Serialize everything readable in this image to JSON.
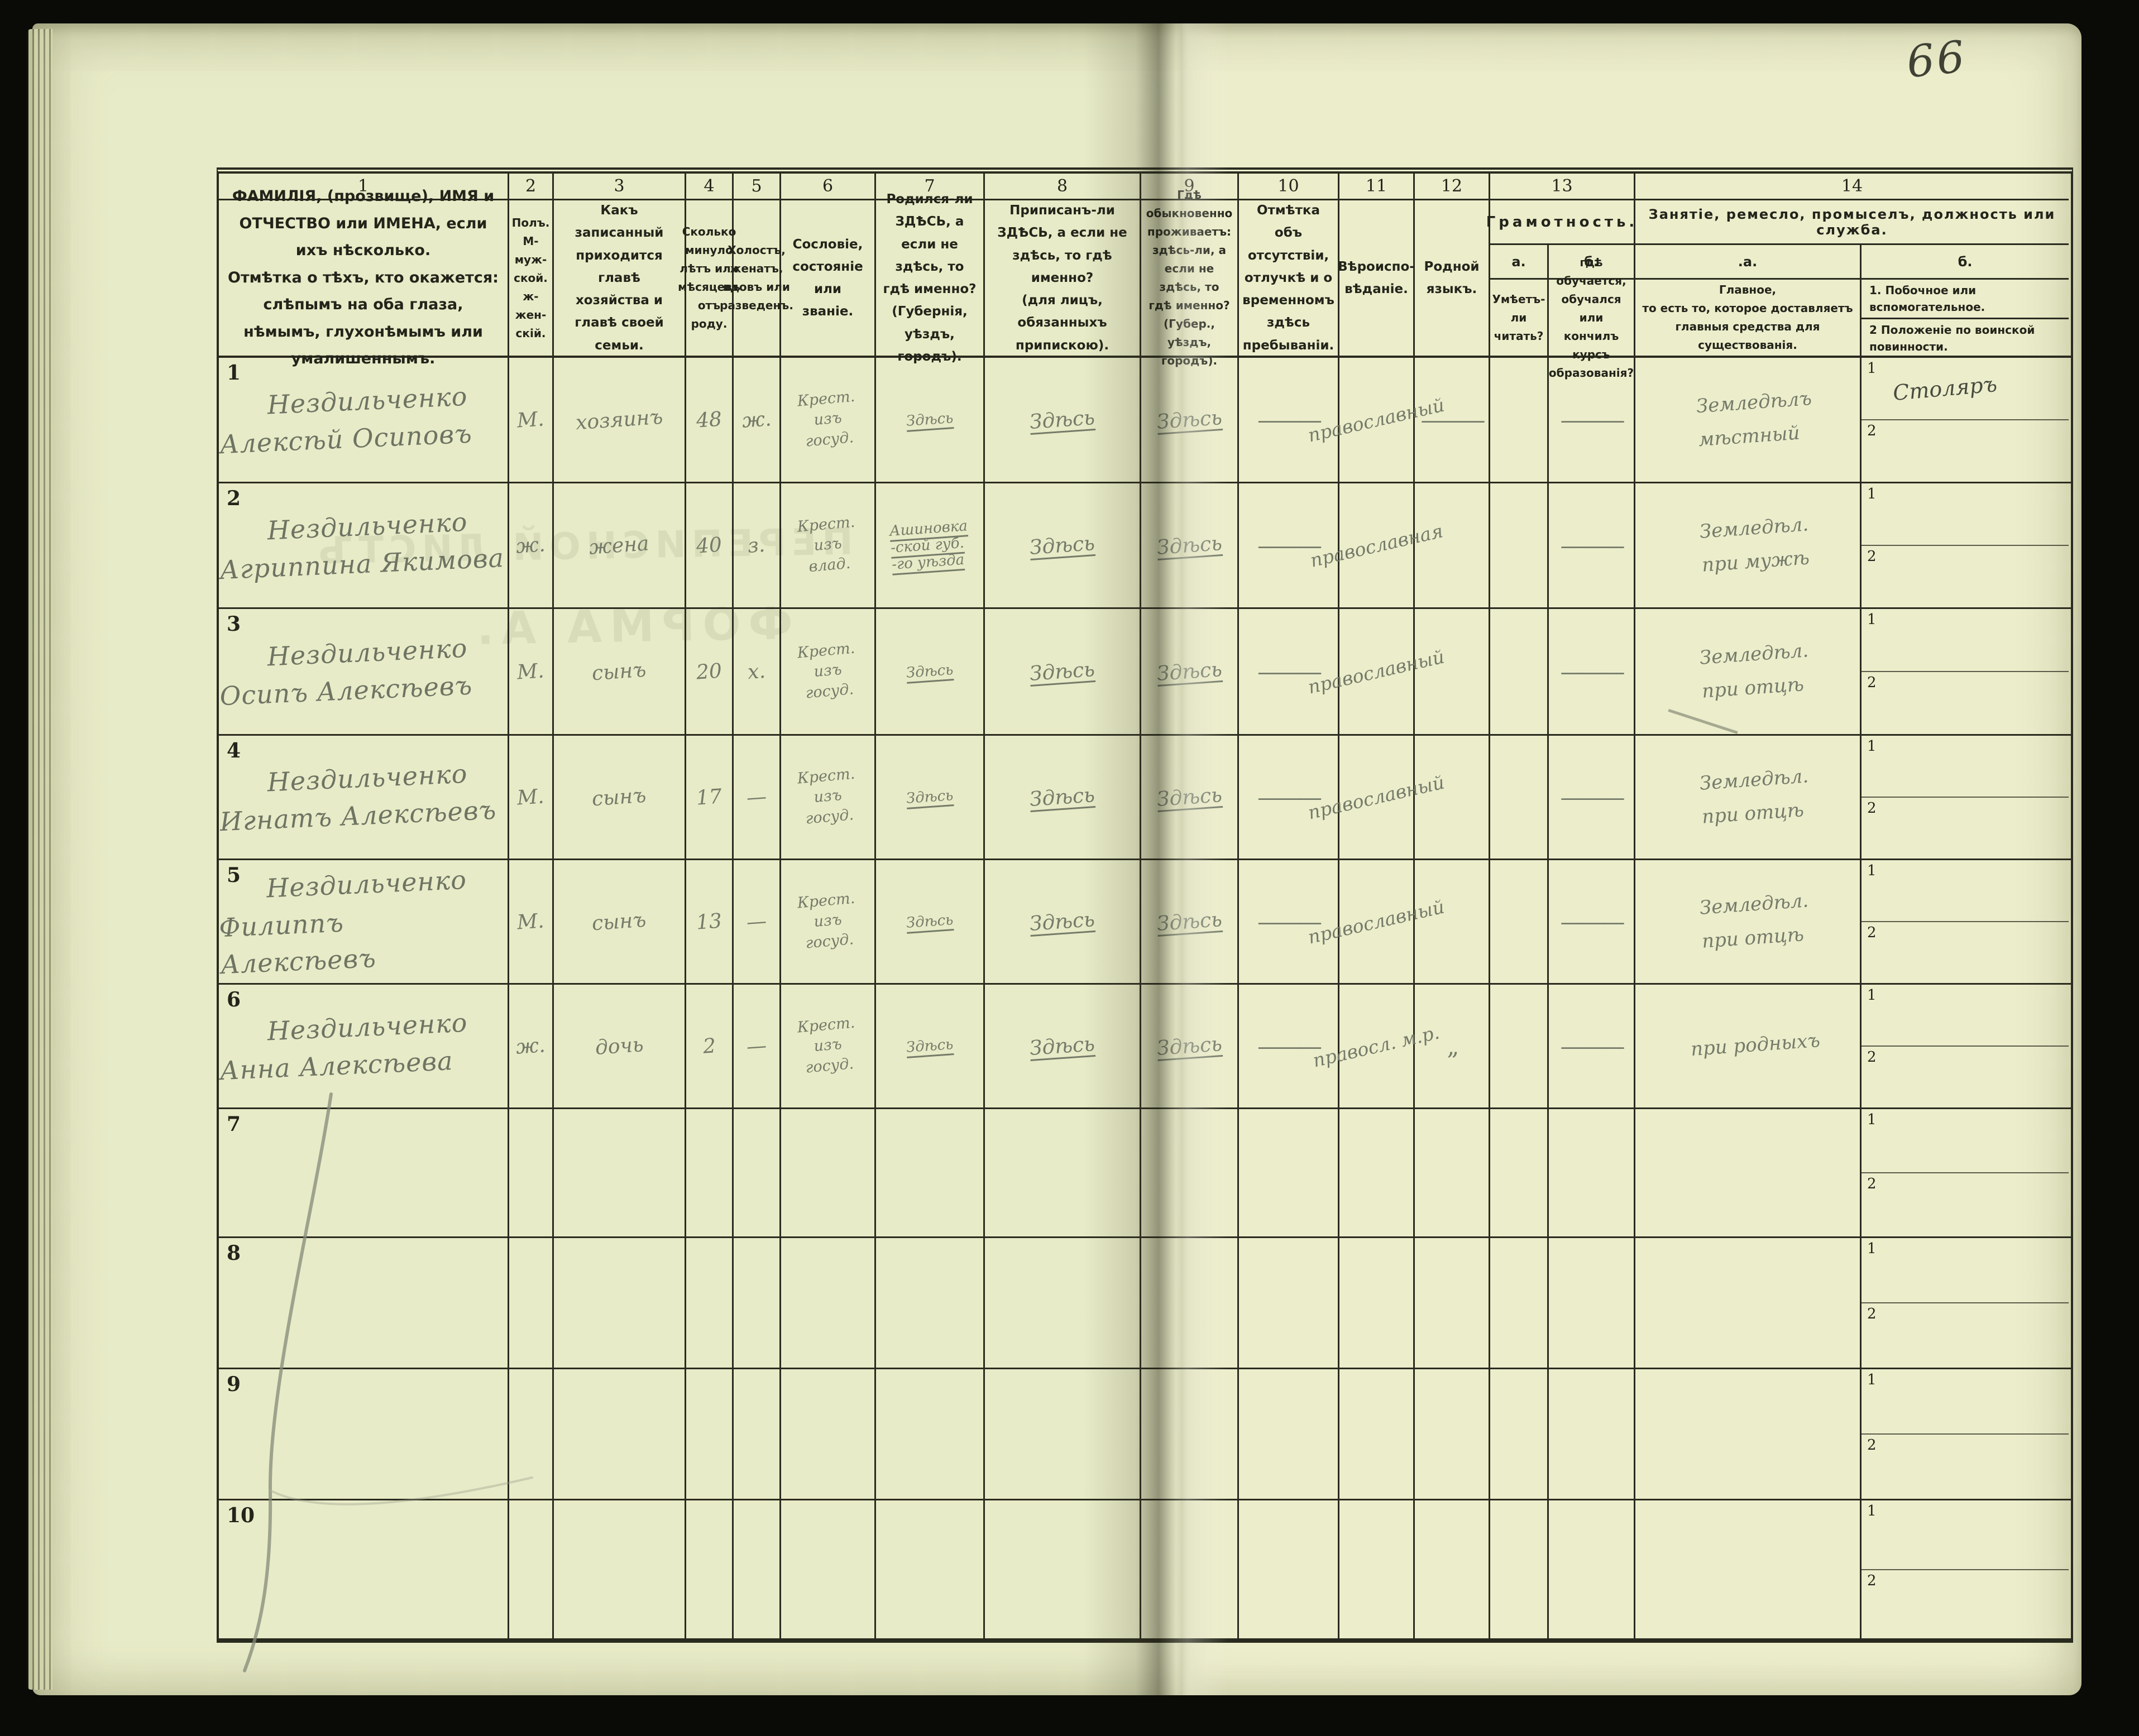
{
  "page": {
    "number": "66",
    "bleed_through": {
      "line1": "ПЕРЕПИСНОЙ ЛИСТЪ",
      "line2": "ФОРМА А."
    }
  },
  "table": {
    "columns": {
      "c1": {
        "num": "1",
        "text": "ФАМИЛІЯ, (прозвище), ИМЯ и ОТЧЕСТВО или ИМЕНА, если ихъ нѣсколько.\nОтмѣтка о тѣхъ, кто окажется: слѣпымъ на оба глаза, нѣмымъ, глухонѣмымъ или умалишеннымъ."
      },
      "c2": {
        "num": "2",
        "text": "Полъ.\nМ-муж-\nской.\nж-жен-\nскій."
      },
      "c3": {
        "num": "3",
        "text": "Какъ записанный приходится главѣ хозяйства и главѣ своей семьи."
      },
      "c4": {
        "num": "4",
        "text": "Сколько минуло лѣтъ или мѣсяцевъ отъ роду."
      },
      "c5": {
        "num": "5",
        "text": "Холостъ, женатъ, вдовъ или разведенъ."
      },
      "c6": {
        "num": "6",
        "text": "Сословіе, состояніе или званіе."
      },
      "c7": {
        "num": "7",
        "text": "Родился-ли ЗДѢСЬ, а если не здѣсь, то гдѣ именно?\n(Губернія, уѣздъ, городъ)."
      },
      "c8": {
        "num": "8",
        "text": "Приписанъ-ли ЗДѢСЬ, а если не здѣсь, то гдѣ именно?\n(для лицъ, обязанныхъ припискою)."
      },
      "c9": {
        "num": "9",
        "text": "Гдѣ обыкновенно проживаетъ: здѣсь-ли, а если не здѣсь, то гдѣ именно?\n(Губер., уѣздъ, городъ)."
      },
      "c10": {
        "num": "10",
        "text": "Отмѣтка объ отсутствіи, отлучкѣ и о временномъ здѣсь пребываніи."
      },
      "c11": {
        "num": "11",
        "text": "Вѣроиспо-\nвѣданіе."
      },
      "c12": {
        "num": "12",
        "text": "Родной\nязыкъ."
      },
      "c13": {
        "num": "13",
        "title": "Грамотность.",
        "a_label": "а.",
        "b_label": "б.",
        "a_text": "Умѣетъ-\nли\nчитать?",
        "b_text": "гдѣ обучается,\nобучался или\nкончилъ курсъ\nобразованія?"
      },
      "c14": {
        "num": "14",
        "title": "Занятіе, ремесло, промыселъ, должность или служба.",
        "a_label": ".а.",
        "b_label": "б.",
        "a_text": "Главное,\nто есть то, которое доставляетъ\nглавныя средства для существованія.",
        "b1_text": "1. Побочное или вспомогательное.",
        "b2_text": "2  Положеніе по воинской повинности."
      }
    },
    "rows": [
      {
        "num": "1",
        "name": "Нездильченко\nАлексѣй Осиповъ",
        "sex": "М.",
        "relation": "хозяинъ",
        "age": "48",
        "marital": "ж.",
        "estate": "Крест.\nизъ\nгосуд.",
        "born": "Здѣсь",
        "registered": "Здѣсь",
        "resides": "Здѣсь",
        "absence": "———",
        "religion": "православный",
        "language": "———",
        "lit_read": "",
        "lit_school": "———",
        "occ_main": "Земледѣлъ\nмѣстный",
        "side1": "Столяръ",
        "side2": "",
        "s1": "1",
        "s2": "2"
      },
      {
        "num": "2",
        "name": "Нездильченко\nАгриппина Якимова",
        "sex": "ж.",
        "relation": "жена",
        "age": "40",
        "marital": "з.",
        "estate": "Крест.\nизъ\nвлад.",
        "born": "Ашиновка\n-ской губ.\n-го уѣзда",
        "registered": "Здѣсь",
        "resides": "Здѣсь",
        "absence": "———",
        "religion": "православная",
        "language": "",
        "lit_read": "",
        "lit_school": "———",
        "occ_main": "Земледѣл.\nпри мужѣ",
        "side1": "",
        "side2": "",
        "s1": "1",
        "s2": "2"
      },
      {
        "num": "3",
        "name": "Нездильченко\nОсипъ Алексѣевъ",
        "sex": "М.",
        "relation": "сынъ",
        "age": "20",
        "marital": "х.",
        "estate": "Крест.\nизъ\nгосуд.",
        "born": "Здѣсь",
        "registered": "Здѣсь",
        "resides": "Здѣсь",
        "absence": "———",
        "religion": "православный",
        "language": "",
        "lit_read": "",
        "lit_school": "———",
        "occ_main": "Земледѣл.\nпри отцѣ",
        "side1": "",
        "side2": "",
        "s1": "1",
        "s2": "2"
      },
      {
        "num": "4",
        "name": "Нездильченко\nИгнатъ Алексѣевъ",
        "sex": "М.",
        "relation": "сынъ",
        "age": "17",
        "marital": "—",
        "estate": "Крест.\nизъ\nгосуд.",
        "born": "Здѣсь",
        "registered": "Здѣсь",
        "resides": "Здѣсь",
        "absence": "———",
        "religion": "православный",
        "language": "",
        "lit_read": "",
        "lit_school": "———",
        "occ_main": "Земледѣл.\nпри отцѣ",
        "side1": "",
        "side2": "",
        "s1": "1",
        "s2": "2"
      },
      {
        "num": "5",
        "name": "Нездильченко\nФилиппъ Алексѣевъ",
        "sex": "М.",
        "relation": "сынъ",
        "age": "13",
        "marital": "—",
        "estate": "Крест.\nизъ\nгосуд.",
        "born": "Здѣсь",
        "registered": "Здѣсь",
        "resides": "Здѣсь",
        "absence": "———",
        "religion": "православный",
        "language": "",
        "lit_read": "",
        "lit_school": "———",
        "occ_main": "Земледѣл.\nпри отцѣ",
        "side1": "",
        "side2": "",
        "s1": "1",
        "s2": "2"
      },
      {
        "num": "6",
        "name": "Нездильченко\nАнна Алексѣева",
        "sex": "ж.",
        "relation": "дочь",
        "age": "2",
        "marital": "—",
        "estate": "Крест.\nизъ\nгосуд.",
        "born": "Здѣсь",
        "registered": "Здѣсь",
        "resides": "Здѣсь",
        "absence": "———",
        "religion": "правосл. м.р.",
        "language": "„",
        "lit_read": "",
        "lit_school": "———",
        "occ_main": "при родныхъ",
        "side1": "",
        "side2": "",
        "s1": "1",
        "s2": "2"
      },
      {
        "num": "7",
        "name": "",
        "sex": "",
        "relation": "",
        "age": "",
        "marital": "",
        "estate": "",
        "born": "",
        "registered": "",
        "resides": "",
        "absence": "",
        "religion": "",
        "language": "",
        "lit_read": "",
        "lit_school": "",
        "occ_main": "",
        "side1": "",
        "side2": "",
        "s1": "1",
        "s2": "2"
      },
      {
        "num": "8",
        "name": "",
        "sex": "",
        "relation": "",
        "age": "",
        "marital": "",
        "estate": "",
        "born": "",
        "registered": "",
        "resides": "",
        "absence": "",
        "religion": "",
        "language": "",
        "lit_read": "",
        "lit_school": "",
        "occ_main": "",
        "side1": "",
        "side2": "",
        "s1": "1",
        "s2": "2"
      },
      {
        "num": "9",
        "name": "",
        "sex": "",
        "relation": "",
        "age": "",
        "marital": "",
        "estate": "",
        "born": "",
        "registered": "",
        "resides": "",
        "absence": "",
        "religion": "",
        "language": "",
        "lit_read": "",
        "lit_school": "",
        "occ_main": "",
        "side1": "",
        "side2": "",
        "s1": "1",
        "s2": "2"
      },
      {
        "num": "10",
        "name": "",
        "sex": "",
        "relation": "",
        "age": "",
        "marital": "",
        "estate": "",
        "born": "",
        "registered": "",
        "resides": "",
        "absence": "",
        "religion": "",
        "language": "",
        "lit_read": "",
        "lit_school": "",
        "occ_main": "",
        "side1": "",
        "side2": "",
        "s1": "1",
        "s2": "2"
      }
    ]
  }
}
